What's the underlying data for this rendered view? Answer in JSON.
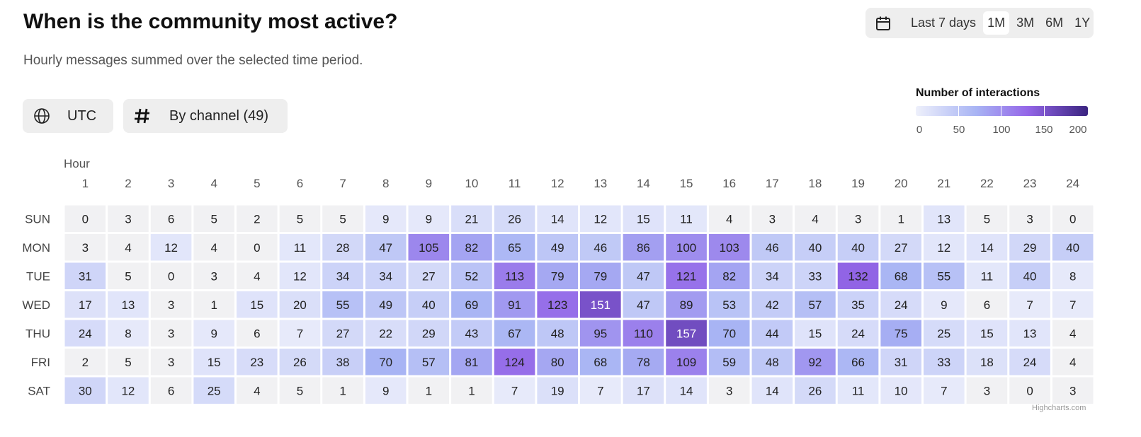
{
  "header": {
    "title": "When is the community most active?",
    "subtitle": "Hourly messages summed over the selected time period."
  },
  "range_selector": {
    "icon": "calendar-icon",
    "options": [
      "Last 7 days",
      "1M",
      "3M",
      "6M",
      "1Y"
    ],
    "selected": "1M"
  },
  "filters": {
    "timezone_label": "UTC",
    "timezone_icon": "globe-icon",
    "channel_label": "By channel (49)",
    "channel_icon": "hash-icon"
  },
  "legend": {
    "title": "Number of interactions",
    "labels": [
      "0",
      "50",
      "100",
      "150",
      "200"
    ],
    "colors": [
      "#eef0fb",
      "#a8b4f4",
      "#9466e8",
      "#3a2480"
    ]
  },
  "credit": "Highcharts.com",
  "chart_data": {
    "type": "heatmap",
    "xlabel": "Hour",
    "ylabel": "",
    "x": [
      1,
      2,
      3,
      4,
      5,
      6,
      7,
      8,
      9,
      10,
      11,
      12,
      13,
      14,
      15,
      16,
      17,
      18,
      19,
      20,
      21,
      22,
      23,
      24
    ],
    "y": [
      "SUN",
      "MON",
      "TUE",
      "WED",
      "THU",
      "FRI",
      "SAT"
    ],
    "values": [
      [
        0,
        3,
        6,
        5,
        2,
        5,
        5,
        9,
        9,
        21,
        26,
        14,
        12,
        15,
        11,
        4,
        3,
        4,
        3,
        1,
        13,
        5,
        3,
        0
      ],
      [
        3,
        4,
        12,
        4,
        0,
        11,
        28,
        47,
        105,
        82,
        65,
        49,
        46,
        86,
        100,
        103,
        46,
        40,
        40,
        27,
        12,
        14,
        29,
        40
      ],
      [
        31,
        5,
        0,
        3,
        4,
        12,
        34,
        34,
        27,
        52,
        113,
        79,
        79,
        47,
        121,
        82,
        34,
        33,
        132,
        68,
        55,
        11,
        40,
        8
      ],
      [
        17,
        13,
        3,
        1,
        15,
        20,
        55,
        49,
        40,
        69,
        91,
        123,
        151,
        47,
        89,
        53,
        42,
        57,
        35,
        24,
        9,
        6,
        7,
        7
      ],
      [
        24,
        8,
        3,
        9,
        6,
        7,
        27,
        22,
        29,
        43,
        67,
        48,
        95,
        110,
        157,
        70,
        44,
        15,
        24,
        75,
        25,
        15,
        13,
        4
      ],
      [
        2,
        5,
        3,
        15,
        23,
        26,
        38,
        70,
        57,
        81,
        124,
        80,
        68,
        78,
        109,
        59,
        48,
        92,
        66,
        31,
        33,
        18,
        24,
        4
      ],
      [
        30,
        12,
        6,
        25,
        4,
        5,
        1,
        9,
        1,
        1,
        7,
        19,
        7,
        17,
        14,
        3,
        14,
        26,
        11,
        10,
        7,
        3,
        0,
        3
      ]
    ],
    "color_range": [
      0,
      200
    ],
    "legend_position": "top-right"
  }
}
